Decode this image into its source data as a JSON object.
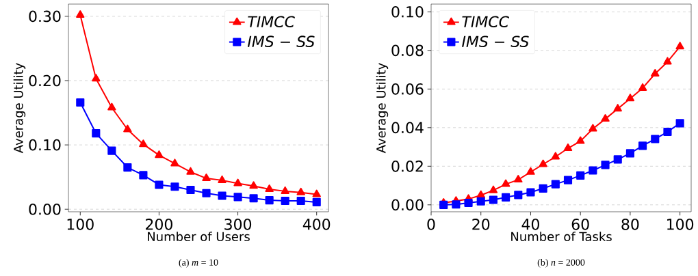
{
  "chart_data": [
    {
      "type": "line",
      "xlabel": "Number of Users",
      "ylabel": "Average Utility",
      "annotations": [
        "(a) *m* = 10"
      ],
      "x": [
        100,
        120,
        140,
        160,
        180,
        200,
        220,
        240,
        260,
        280,
        300,
        320,
        340,
        360,
        380,
        400
      ],
      "series": [
        {
          "name": "TIMCC",
          "color": "#ff0000",
          "marker": "triangle",
          "values": [
            0.302,
            0.203,
            0.158,
            0.124,
            0.101,
            0.084,
            0.071,
            0.058,
            0.048,
            0.045,
            0.04,
            0.036,
            0.031,
            0.028,
            0.026,
            0.023
          ]
        },
        {
          "name": "IMS − SS",
          "color": "#0000ff",
          "marker": "square",
          "values": [
            0.166,
            0.118,
            0.091,
            0.065,
            0.053,
            0.038,
            0.035,
            0.03,
            0.025,
            0.021,
            0.019,
            0.017,
            0.014,
            0.013,
            0.013,
            0.011
          ]
        }
      ],
      "xlim": [
        85,
        415
      ],
      "ylim": [
        -0.004,
        0.319
      ],
      "xticks": [
        100,
        200,
        300,
        400
      ],
      "yticks": [
        {
          "value": 0,
          "label": "0.00"
        },
        {
          "value": 0.1,
          "label": "0.10"
        },
        {
          "value": 0.2,
          "label": "0.20"
        },
        {
          "value": 0.3,
          "label": "0.30"
        }
      ],
      "grid": "y",
      "legend": "top right"
    },
    {
      "type": "line",
      "xlabel": "Number of Tasks",
      "ylabel": "Average Utility",
      "annotations": [
        "(b) *n* = 2000"
      ],
      "x": [
        5,
        10,
        15,
        20,
        25,
        30,
        35,
        40,
        45,
        50,
        55,
        60,
        65,
        70,
        75,
        80,
        85,
        90,
        95,
        100
      ],
      "series": [
        {
          "name": "TIMCC",
          "color": "#ff0000",
          "marker": "triangle",
          "values": [
            0.001,
            0.002,
            0.003,
            0.005,
            0.0075,
            0.0107,
            0.013,
            0.017,
            0.021,
            0.0249,
            0.0293,
            0.033,
            0.0394,
            0.0445,
            0.0498,
            0.0551,
            0.0605,
            0.0679,
            0.0741,
            0.082
          ]
        },
        {
          "name": "IMS − SS",
          "color": "#0000ff",
          "marker": "square",
          "values": [
            0.0,
            0.0002,
            0.001,
            0.0018,
            0.0026,
            0.0039,
            0.0051,
            0.0065,
            0.0085,
            0.0107,
            0.0128,
            0.0152,
            0.0178,
            0.0207,
            0.0235,
            0.0267,
            0.0306,
            0.0341,
            0.0378,
            0.0423
          ]
        }
      ],
      "xlim": [
        0,
        104.5
      ],
      "ylim": [
        -0.0036,
        0.104
      ],
      "xticks": [
        0,
        20,
        40,
        60,
        80,
        100
      ],
      "yticks": [
        {
          "value": 0,
          "label": "0.00"
        },
        {
          "value": 0.02,
          "label": "0.02"
        },
        {
          "value": 0.04,
          "label": "0.04"
        },
        {
          "value": 0.06,
          "label": "0.06"
        },
        {
          "value": 0.08,
          "label": "0.08"
        },
        {
          "value": 0.1,
          "label": "0.10"
        }
      ],
      "grid": "y",
      "legend": "top left"
    }
  ]
}
